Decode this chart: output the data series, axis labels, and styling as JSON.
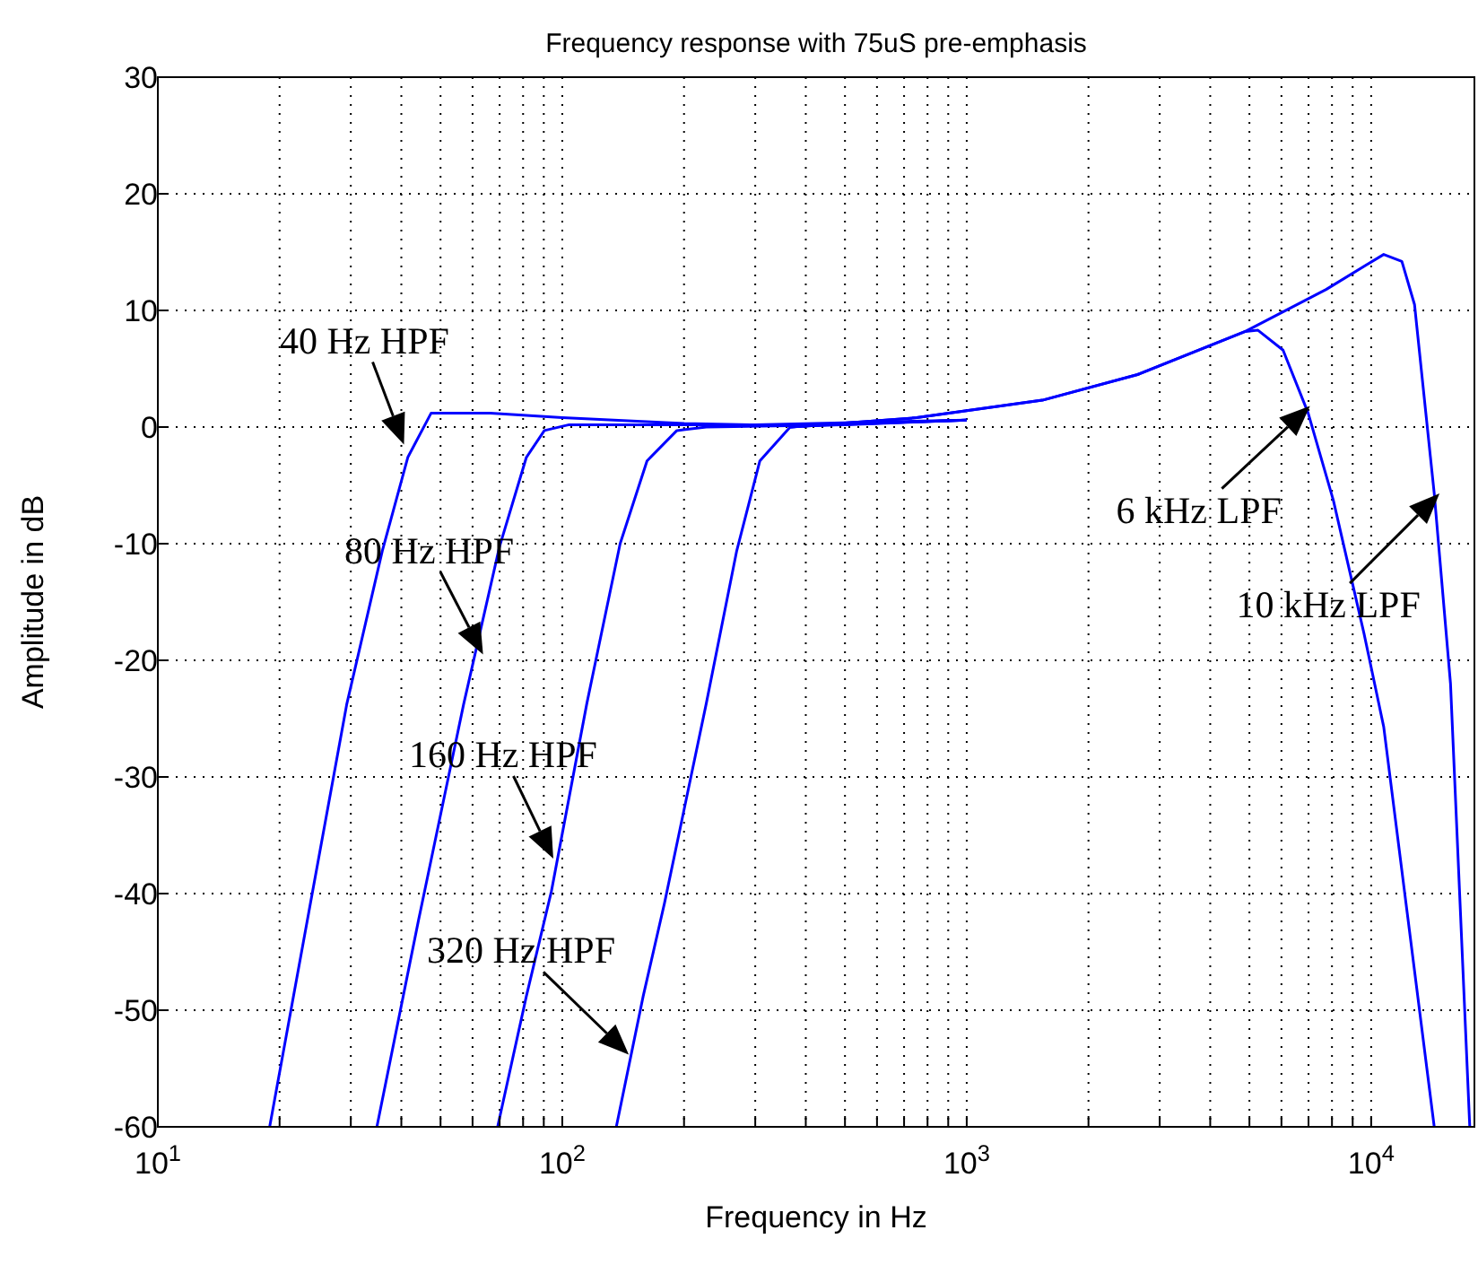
{
  "chart_data": {
    "type": "line",
    "title": "Frequency response with 75uS pre-emphasis",
    "xlabel": "Frequency in Hz",
    "ylabel": "Amplitude in dB",
    "log": "x",
    "grid": true,
    "line_style": "solid",
    "marker": "none",
    "xlim": [
      10,
      18000
    ],
    "ylim": [
      -60,
      30
    ],
    "xticks": [
      {
        "value": 10,
        "label": "10$^{1}$"
      },
      {
        "value": 20,
        "label": null
      },
      {
        "value": 30,
        "label": null
      },
      {
        "value": 40,
        "label": null
      },
      {
        "value": 50,
        "label": null
      },
      {
        "value": 60,
        "label": null
      },
      {
        "value": 70,
        "label": null
      },
      {
        "value": 80,
        "label": null
      },
      {
        "value": 90,
        "label": null
      },
      {
        "value": 100,
        "label": "10$^{2}$"
      },
      {
        "value": 200,
        "label": null
      },
      {
        "value": 300,
        "label": null
      },
      {
        "value": 400,
        "label": null
      },
      {
        "value": 500,
        "label": null
      },
      {
        "value": 600,
        "label": null
      },
      {
        "value": 700,
        "label": null
      },
      {
        "value": 800,
        "label": null
      },
      {
        "value": 900,
        "label": null
      },
      {
        "value": 1000,
        "label": "10$^{3}$"
      },
      {
        "value": 2000,
        "label": null
      },
      {
        "value": 3000,
        "label": null
      },
      {
        "value": 4000,
        "label": null
      },
      {
        "value": 5000,
        "label": null
      },
      {
        "value": 6000,
        "label": null
      },
      {
        "value": 7000,
        "label": null
      },
      {
        "value": 8000,
        "label": null
      },
      {
        "value": 9000,
        "label": null
      },
      {
        "value": 10000,
        "label": "10$^{4}$"
      }
    ],
    "yticks": [
      -60,
      -50,
      -40,
      -30,
      -20,
      -10,
      0,
      10,
      20,
      30
    ],
    "series": [
      {
        "color": "#0000ff",
        "x": [
          18.9,
          29.3,
          35.9,
          41.5,
          47.4,
          66.4,
          100,
          200,
          400,
          1000
        ],
        "values": [
          -60,
          -23.8,
          -10.6,
          -2.6,
          1.2,
          1.2,
          0.8,
          0.3,
          0.1,
          0.6
        ]
      },
      {
        "color": "#0000ff",
        "x": [
          34.8,
          44.1,
          57,
          69.9,
          81.5,
          90.3,
          104,
          300,
          1000
        ],
        "values": [
          -60,
          -42.3,
          -23.8,
          -10.3,
          -2.6,
          -0.3,
          0.2,
          0.2,
          0.6
        ]
      },
      {
        "color": "#0000ff",
        "x": [
          69.2,
          81.5,
          94,
          115,
          139,
          162,
          192,
          227,
          500,
          1000
        ],
        "values": [
          -60,
          -48.8,
          -39.8,
          -23.7,
          -10,
          -2.9,
          -0.3,
          0,
          0.2,
          0.6
        ]
      },
      {
        "color": "#0000ff",
        "x": [
          136,
          158.5,
          179,
          227,
          270,
          308,
          366,
          450,
          1000
        ],
        "values": [
          -60,
          -48.8,
          -40.8,
          -23.7,
          -10.6,
          -2.9,
          0,
          0.2,
          0.6
        ]
      },
      {
        "color": "#0000ff",
        "x": [
          366,
          752,
          1538,
          2645,
          4886,
          5250,
          6055,
          6985,
          8065,
          9600,
          10740,
          14320
        ],
        "values": [
          0,
          0.8,
          2.3,
          4.5,
          8.2,
          8.3,
          6.6,
          1.2,
          -6.3,
          -17.7,
          -25.7,
          -60
        ]
      },
      {
        "color": "#0000ff",
        "x": [
          366,
          752,
          1538,
          2645,
          4886,
          7740,
          10740,
          11910,
          12800,
          14320,
          15710,
          17530
        ],
        "values": [
          0,
          0.8,
          2.3,
          4.5,
          8.2,
          11.8,
          14.8,
          14.2,
          10.5,
          -5.7,
          -22,
          -60
        ]
      }
    ],
    "annotations": [
      {
        "text": "40 Hz HPF",
        "x": 40.6,
        "y": -1.5
      },
      {
        "text": "80 Hz HPF",
        "x": 63.7,
        "y": -19.5
      },
      {
        "text": "160 Hz HPF",
        "x": 95,
        "y": -37
      },
      {
        "text": "320 Hz HPF",
        "x": 146,
        "y": -53.8
      },
      {
        "text": "6 kHz LPF",
        "x": 7060,
        "y": 1.8
      },
      {
        "text": "10 kHz LPF",
        "x": 14760,
        "y": -5.7
      }
    ]
  }
}
